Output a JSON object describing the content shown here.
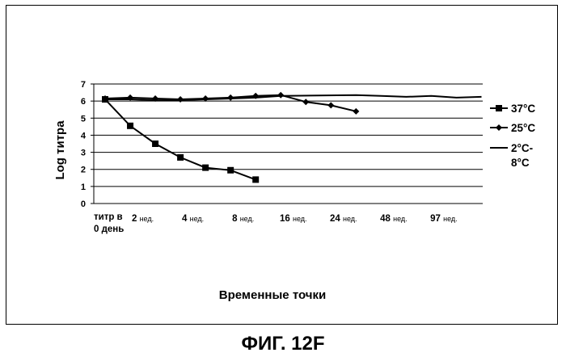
{
  "chart_data": {
    "type": "line",
    "xlabel": "Временные точки",
    "ylabel": "Log титра",
    "ylim": [
      0,
      7
    ],
    "yticks": [
      0,
      1,
      2,
      3,
      4,
      5,
      6,
      7
    ],
    "grid": true,
    "legend_position": "right",
    "x_positions": 31,
    "tick_labels": [
      {
        "index": 0,
        "main": "титр в",
        "main2": "0 день",
        "unit": ""
      },
      {
        "index": 3,
        "main": "2",
        "main2": "",
        "unit": "нед."
      },
      {
        "index": 7,
        "main": "4",
        "main2": "",
        "unit": "нед."
      },
      {
        "index": 11,
        "main": "8",
        "main2": "",
        "unit": "нед."
      },
      {
        "index": 15,
        "main": "16",
        "main2": "",
        "unit": "нед."
      },
      {
        "index": 19,
        "main": "24",
        "main2": "",
        "unit": "нед."
      },
      {
        "index": 23,
        "main": "48",
        "main2": "",
        "unit": "нед."
      },
      {
        "index": 27,
        "main": "97",
        "main2": "",
        "unit": "нед."
      }
    ],
    "series": [
      {
        "name": "37°C",
        "marker": "square",
        "color": "#000000",
        "points": [
          [
            0,
            6.1
          ],
          [
            2,
            4.55
          ],
          [
            4,
            3.5
          ],
          [
            6,
            2.7
          ],
          [
            8,
            2.1
          ],
          [
            10,
            1.95
          ],
          [
            12,
            1.4
          ]
        ]
      },
      {
        "name": "25°C",
        "marker": "diamond",
        "color": "#000000",
        "points": [
          [
            0,
            6.15
          ],
          [
            2,
            6.2
          ],
          [
            4,
            6.15
          ],
          [
            6,
            6.1
          ],
          [
            8,
            6.15
          ],
          [
            10,
            6.2
          ],
          [
            12,
            6.3
          ],
          [
            14,
            6.35
          ],
          [
            16,
            5.95
          ],
          [
            18,
            5.75
          ],
          [
            20,
            5.4
          ]
        ]
      },
      {
        "name": "2°C-\n8°C",
        "marker": "none",
        "color": "#000000",
        "points": [
          [
            0,
            6.1
          ],
          [
            2,
            6.1
          ],
          [
            4,
            6.05
          ],
          [
            6,
            6.05
          ],
          [
            8,
            6.1
          ],
          [
            10,
            6.15
          ],
          [
            12,
            6.2
          ],
          [
            14,
            6.3
          ],
          [
            20,
            6.35
          ],
          [
            22,
            6.3
          ],
          [
            24,
            6.25
          ],
          [
            26,
            6.3
          ],
          [
            28,
            6.2
          ],
          [
            30,
            6.25
          ]
        ]
      }
    ]
  },
  "figure": {
    "caption": "ФИГ. 12F"
  }
}
